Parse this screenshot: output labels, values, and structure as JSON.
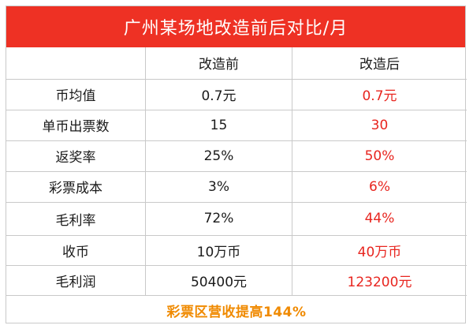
{
  "title": "广州某场地改造前后对比/月",
  "headers": {
    "label": "",
    "before": "改造前",
    "after": "改造后"
  },
  "rows": [
    {
      "label": "币均值",
      "before": "0.7元",
      "after": "0.7元"
    },
    {
      "label": "单币出票数",
      "before": "15",
      "after": "30"
    },
    {
      "label": "返奖率",
      "before": "25%",
      "after": "50%"
    },
    {
      "label": "彩票成本",
      "before": "3%",
      "after": "6%"
    },
    {
      "label": "毛利率",
      "before": "72%",
      "after": "44%"
    },
    {
      "label": "收币",
      "before": "10万币",
      "after": "40万币"
    },
    {
      "label": "毛利润",
      "before": "50400元",
      "after": "123200元"
    }
  ],
  "summary": "彩票区营收提高144%",
  "colors": {
    "title_bg": "#ee3124",
    "after_text": "#e8251f",
    "summary_text": "#f08a00",
    "border": "#c9c9c9"
  }
}
